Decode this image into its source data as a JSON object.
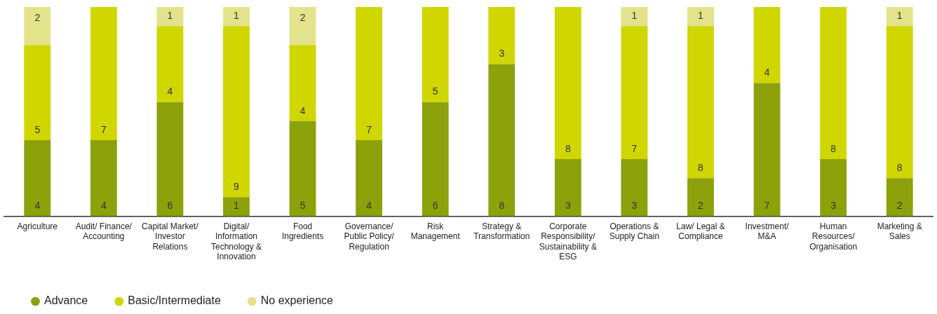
{
  "chart_data": {
    "type": "bar",
    "stacked": true,
    "data_labels": true,
    "legend": "bottom left",
    "grid": false,
    "categories": [
      "Agriculture",
      "Audit/ Finance/ Accounting",
      "Capital Market/ Investor Relations",
      "Digital/ Information Technology & Innovation",
      "Food Ingredients",
      "Governance/ Public Policy/ Regulation",
      "Risk Management",
      "Strategy & Transformation",
      "Corporate Responsibility/Sustainability & ESG",
      "Operations & Supply Chain",
      "Law/ Legal & Compliance",
      "Investment/ M&A",
      "Human Resources/ Organisation",
      "Marketing & Sales"
    ],
    "series": [
      {
        "name": "Advance",
        "color": "#8ca10a",
        "values": [
          4,
          4,
          6,
          1,
          5,
          4,
          6,
          8,
          3,
          3,
          2,
          7,
          3,
          2
        ]
      },
      {
        "name": "Basic/Intermediate",
        "color": "#cfd600",
        "values": [
          5,
          7,
          4,
          9,
          4,
          7,
          5,
          3,
          8,
          7,
          8,
          4,
          8,
          8
        ]
      },
      {
        "name": "No experience",
        "color": "#e3e38c",
        "values": [
          2,
          null,
          1,
          1,
          2,
          null,
          null,
          null,
          null,
          1,
          1,
          null,
          null,
          1
        ]
      }
    ]
  }
}
